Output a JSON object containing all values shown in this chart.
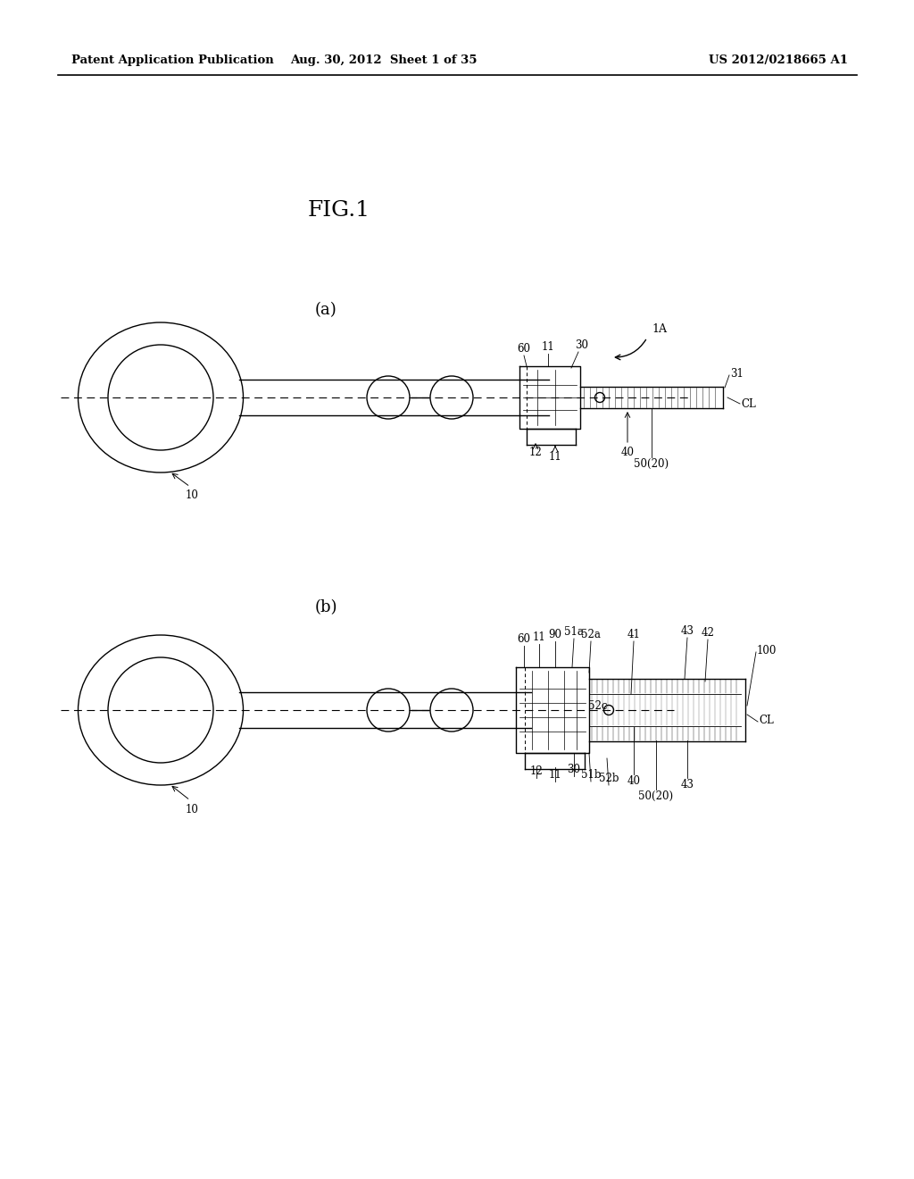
{
  "bg_color": "#ffffff",
  "header_left": "Patent Application Publication",
  "header_mid": "Aug. 30, 2012  Sheet 1 of 35",
  "header_right": "US 2012/0218665 A1",
  "fig_label": "FIG.1",
  "sub_a_label": "(a)",
  "sub_b_label": "(b)",
  "line_color": "#000000",
  "text_color": "#000000",
  "lw": 1.0
}
